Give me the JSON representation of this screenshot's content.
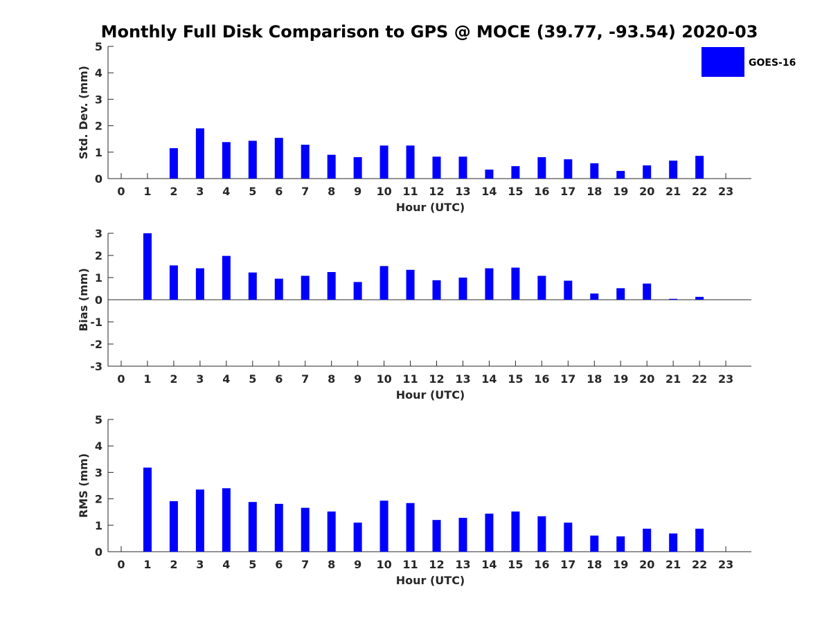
{
  "chart_data": {
    "title": "Monthly Full Disk Comparison to GPS @ MOCE (39.77, -93.54) 2020-03",
    "color": "#0000ff",
    "legend": {
      "label": "GOES-16",
      "placement": "top-right"
    },
    "panels": [
      {
        "type": "bar",
        "ylabel": "Std. Dev. (mm)",
        "xlabel": "Hour (UTC)",
        "ylim": [
          0,
          5
        ],
        "yticks": [
          0,
          1,
          2,
          3,
          4,
          5
        ],
        "zero_line": false,
        "categories": [
          "0",
          "1",
          "2",
          "3",
          "4",
          "5",
          "6",
          "7",
          "8",
          "9",
          "10",
          "11",
          "12",
          "13",
          "14",
          "15",
          "16",
          "17",
          "18",
          "19",
          "20",
          "21",
          "22",
          "23"
        ],
        "values": [
          null,
          null,
          1.15,
          1.9,
          1.38,
          1.43,
          1.54,
          1.28,
          0.9,
          0.81,
          1.25,
          1.25,
          0.83,
          0.83,
          0.34,
          0.47,
          0.81,
          0.73,
          0.58,
          0.29,
          0.5,
          0.68,
          0.86,
          null
        ]
      },
      {
        "type": "bar",
        "ylabel": "Bias (mm)",
        "xlabel": "Hour (UTC)",
        "ylim": [
          -3,
          3
        ],
        "yticks": [
          -3,
          -2,
          -1,
          0,
          1,
          2,
          3
        ],
        "zero_line": true,
        "categories": [
          "0",
          "1",
          "2",
          "3",
          "4",
          "5",
          "6",
          "7",
          "8",
          "9",
          "10",
          "11",
          "12",
          "13",
          "14",
          "15",
          "16",
          "17",
          "18",
          "19",
          "20",
          "21",
          "22",
          "23"
        ],
        "values": [
          null,
          3.0,
          1.55,
          1.42,
          1.98,
          1.23,
          0.95,
          1.08,
          1.25,
          0.8,
          1.52,
          1.35,
          0.88,
          1.0,
          1.42,
          1.45,
          1.08,
          0.86,
          0.28,
          0.52,
          0.73,
          0.04,
          0.13,
          null
        ]
      },
      {
        "type": "bar",
        "ylabel": "RMS (mm)",
        "xlabel": "Hour (UTC)",
        "ylim": [
          0,
          5
        ],
        "yticks": [
          0,
          1,
          2,
          3,
          4,
          5
        ],
        "zero_line": false,
        "categories": [
          "0",
          "1",
          "2",
          "3",
          "4",
          "5",
          "6",
          "7",
          "8",
          "9",
          "10",
          "11",
          "12",
          "13",
          "14",
          "15",
          "16",
          "17",
          "18",
          "19",
          "20",
          "21",
          "22",
          "23"
        ],
        "values": [
          null,
          3.18,
          1.91,
          2.35,
          2.4,
          1.88,
          1.81,
          1.66,
          1.52,
          1.1,
          1.93,
          1.84,
          1.2,
          1.28,
          1.44,
          1.52,
          1.34,
          1.1,
          0.61,
          0.58,
          0.87,
          0.69,
          0.87,
          null
        ]
      }
    ]
  }
}
